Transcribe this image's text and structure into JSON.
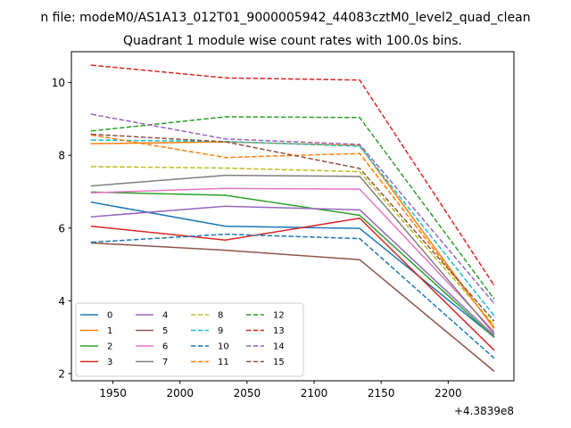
{
  "chart_data": {
    "type": "line",
    "suptitle": "n file: modeM0/AS1A13_012T01_9000005942_44083cztM0_level2_quad_clean",
    "title": "Quadrant 1 module wise count rates with 100.0s bins.",
    "xlabel": "",
    "ylabel": "",
    "x_offset_label": "+4.3839e8",
    "x": [
      1934,
      2034,
      2134,
      2234
    ],
    "xlim": [
      1919,
      2249
    ],
    "ylim": [
      1.8,
      10.85
    ],
    "xticks": [
      1950,
      2000,
      2050,
      2100,
      2150,
      2200
    ],
    "yticks": [
      2,
      4,
      6,
      8,
      10
    ],
    "grid": false,
    "legend_position": "lower left",
    "legend_columns": 4,
    "series": [
      {
        "name": "0",
        "color": "#1f77b4",
        "dash": "solid",
        "values": [
          6.71,
          6.05,
          5.99,
          3.01
        ]
      },
      {
        "name": "1",
        "color": "#ff7f0e",
        "dash": "solid",
        "values": [
          8.32,
          8.37,
          8.27,
          3.25
        ]
      },
      {
        "name": "2",
        "color": "#2ca02c",
        "dash": "solid",
        "values": [
          6.99,
          6.9,
          6.35,
          3.0
        ]
      },
      {
        "name": "3",
        "color": "#d62728",
        "dash": "solid",
        "values": [
          6.05,
          5.67,
          6.27,
          2.65
        ]
      },
      {
        "name": "4",
        "color": "#9467bd",
        "dash": "solid",
        "values": [
          6.31,
          6.6,
          6.5,
          3.05
        ]
      },
      {
        "name": "5",
        "color": "#8c564b",
        "dash": "solid",
        "values": [
          5.59,
          5.39,
          5.13,
          2.07
        ]
      },
      {
        "name": "6",
        "color": "#e377c2",
        "dash": "solid",
        "values": [
          6.97,
          7.09,
          7.07,
          3.16
        ]
      },
      {
        "name": "7",
        "color": "#7f7f7f",
        "dash": "solid",
        "values": [
          7.16,
          7.45,
          7.42,
          3.1
        ]
      },
      {
        "name": "8",
        "color": "#bcbd22",
        "dash": "dashed",
        "values": [
          7.69,
          7.65,
          7.55,
          3.35
        ]
      },
      {
        "name": "9",
        "color": "#17becf",
        "dash": "dashed",
        "values": [
          8.42,
          8.38,
          8.25,
          3.6
        ]
      },
      {
        "name": "10",
        "color": "#1f77b4",
        "dash": "dashed",
        "values": [
          5.61,
          5.83,
          5.71,
          2.43
        ]
      },
      {
        "name": "11",
        "color": "#ff7f0e",
        "dash": "dashed",
        "values": [
          8.56,
          7.94,
          8.05,
          3.28
        ]
      },
      {
        "name": "12",
        "color": "#2ca02c",
        "dash": "dashed",
        "values": [
          8.67,
          9.06,
          9.04,
          4.06
        ]
      },
      {
        "name": "13",
        "color": "#d62728",
        "dash": "dashed",
        "values": [
          10.48,
          10.13,
          10.07,
          4.44
        ]
      },
      {
        "name": "14",
        "color": "#9467bd",
        "dash": "dashed",
        "values": [
          9.13,
          8.45,
          8.3,
          3.94
        ]
      },
      {
        "name": "15",
        "color": "#8c564b",
        "dash": "dashed",
        "values": [
          8.58,
          8.37,
          7.64,
          3.45
        ]
      }
    ]
  }
}
